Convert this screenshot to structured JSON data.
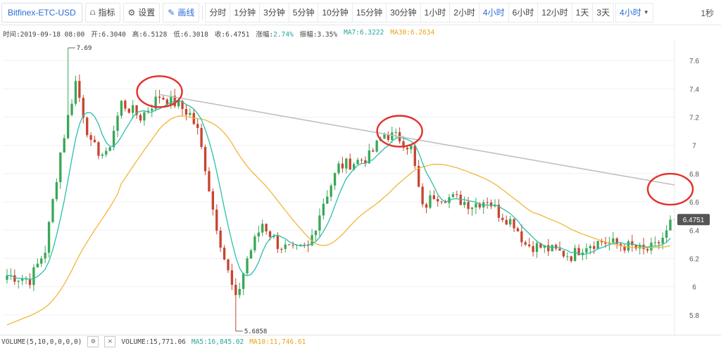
{
  "toolbar": {
    "symbol": "Bitfinex-ETC-USD",
    "indicators_label": "指标",
    "settings_label": "设置",
    "draw_label": "画线",
    "intervals": [
      "分时",
      "1分钟",
      "3分钟",
      "5分钟",
      "10分钟",
      "15分钟",
      "30分钟",
      "1小时",
      "2小时",
      "4小时",
      "6小时",
      "12小时",
      "1天",
      "3天"
    ],
    "active_interval": "4小时",
    "selected_interval_label": "4小时",
    "right_label": "1秒"
  },
  "info": {
    "time": "时间:2019-09-18 08:00",
    "open": "开:6.3040",
    "high": "高:6.5128",
    "low": "低:6.3018",
    "close": "收:6.4751",
    "change_label": "涨幅:",
    "change_value": "2.74%",
    "amplitude": "振幅:3.35%",
    "ma7": "MA7:6.3222",
    "ma30": "MA30:6.2634"
  },
  "volume": {
    "label": "VOLUME(5,10,0,0,0,0)",
    "value": "VOLUME:15,771.06",
    "ma5": "MA5:16,845.02",
    "ma10": "MA10:11,746.61"
  },
  "colors": {
    "up": "#3aa757",
    "down": "#c8442f",
    "ma7": "#2bbfa8",
    "ma30": "#f2b63a",
    "trend": "#c0c0c0",
    "circle": "#e3302b",
    "accent": "#2b6cd6"
  },
  "chart_data": {
    "type": "candlestick",
    "ylim": [
      5.7,
      7.72
    ],
    "yticks": [
      5.8,
      6,
      6.2,
      6.4,
      6.6,
      6.8,
      7,
      7.2,
      7.4,
      7.6
    ],
    "ytick_labels": [
      "5.8",
      "6",
      "6.2",
      "6.4",
      "6.6",
      "6.8",
      "7",
      "7.2",
      "7.4",
      "7.6"
    ],
    "last_price": 6.4751,
    "last_price_label": "6.4751",
    "max_annotation": "7.69",
    "min_annotation": "5.6858",
    "anchors": [
      [
        0,
        6.08
      ],
      [
        6,
        6.05
      ],
      [
        10,
        6.26
      ],
      [
        14,
        6.95
      ],
      [
        18,
        7.45
      ],
      [
        22,
        7.0
      ],
      [
        26,
        6.92
      ],
      [
        30,
        7.3
      ],
      [
        35,
        7.2
      ],
      [
        40,
        7.35
      ],
      [
        44,
        7.3
      ],
      [
        48,
        7.22
      ],
      [
        50,
        7.1
      ],
      [
        52,
        6.85
      ],
      [
        54,
        6.55
      ],
      [
        57,
        6.2
      ],
      [
        60,
        5.9
      ],
      [
        63,
        6.2
      ],
      [
        67,
        6.45
      ],
      [
        71,
        6.3
      ],
      [
        75,
        6.25
      ],
      [
        79,
        6.28
      ],
      [
        83,
        6.6
      ],
      [
        87,
        6.85
      ],
      [
        91,
        6.88
      ],
      [
        95,
        6.92
      ],
      [
        99,
        7.08
      ],
      [
        103,
        7.05
      ],
      [
        106,
        6.98
      ],
      [
        109,
        6.55
      ],
      [
        112,
        6.65
      ],
      [
        118,
        6.62
      ],
      [
        122,
        6.58
      ],
      [
        126,
        6.62
      ],
      [
        129,
        6.52
      ],
      [
        133,
        6.45
      ],
      [
        136,
        6.3
      ],
      [
        140,
        6.28
      ],
      [
        144,
        6.25
      ],
      [
        148,
        6.22
      ],
      [
        152,
        6.3
      ],
      [
        156,
        6.32
      ],
      [
        160,
        6.3
      ],
      [
        164,
        6.28
      ],
      [
        167,
        6.25
      ],
      [
        170,
        6.28
      ],
      [
        173,
        6.38
      ],
      [
        174,
        6.4751
      ]
    ],
    "extremes": {
      "high_index": 16,
      "high": 7.69,
      "low_index": 60,
      "low": 5.6858
    },
    "trendline": [
      [
        40,
        7.36
      ],
      [
        174,
        6.72
      ]
    ],
    "circles": [
      {
        "index": 40,
        "price": 7.38
      },
      {
        "index": 103,
        "price": 7.1
      },
      {
        "index": 174,
        "price": 6.69
      }
    ],
    "series": [
      {
        "name": "MA7",
        "value": "6.3222"
      },
      {
        "name": "MA30",
        "value": "6.2634"
      }
    ]
  }
}
